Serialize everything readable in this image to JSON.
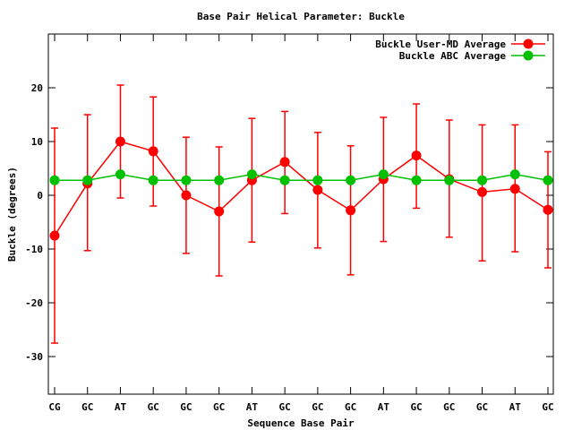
{
  "chart_data": {
    "type": "line",
    "title": "Base Pair Helical Parameter: Buckle",
    "xlabel": "Sequence Base Pair",
    "ylabel": "Buckle (degrees)",
    "categories": [
      "CG",
      "GC",
      "AT",
      "GC",
      "GC",
      "GC",
      "AT",
      "GC",
      "GC",
      "GC",
      "AT",
      "GC",
      "GC",
      "GC",
      "AT",
      "GC"
    ],
    "ylim": [
      -37,
      30
    ],
    "yticks": [
      -30,
      -20,
      -10,
      0,
      10,
      20
    ],
    "grid": false,
    "legend_position": "top-right",
    "series": [
      {
        "name": "Buckle User-MD Average",
        "color": "#ff0000",
        "values": [
          -7.5,
          2.2,
          10.0,
          8.2,
          0.0,
          -3.0,
          2.8,
          6.2,
          1.0,
          -2.8,
          3.0,
          7.4,
          3.0,
          0.6,
          1.2,
          -2.7
        ],
        "error_low": [
          -27.5,
          -10.3,
          -0.5,
          -2.0,
          -10.8,
          -15.0,
          -8.7,
          -3.4,
          -9.8,
          -14.8,
          -8.6,
          -2.4,
          -7.8,
          -12.2,
          -10.5,
          -13.5
        ],
        "error_high": [
          12.5,
          15.0,
          20.5,
          18.3,
          10.8,
          9.0,
          14.3,
          15.6,
          11.7,
          9.2,
          14.5,
          17.0,
          14.0,
          13.1,
          13.1,
          8.1
        ]
      },
      {
        "name": "Buckle ABC Average",
        "color": "#00c000",
        "values": [
          2.8,
          2.8,
          3.9,
          2.8,
          2.8,
          2.8,
          3.9,
          2.8,
          2.8,
          2.8,
          3.9,
          2.8,
          2.8,
          2.8,
          3.9,
          2.8
        ]
      }
    ]
  }
}
